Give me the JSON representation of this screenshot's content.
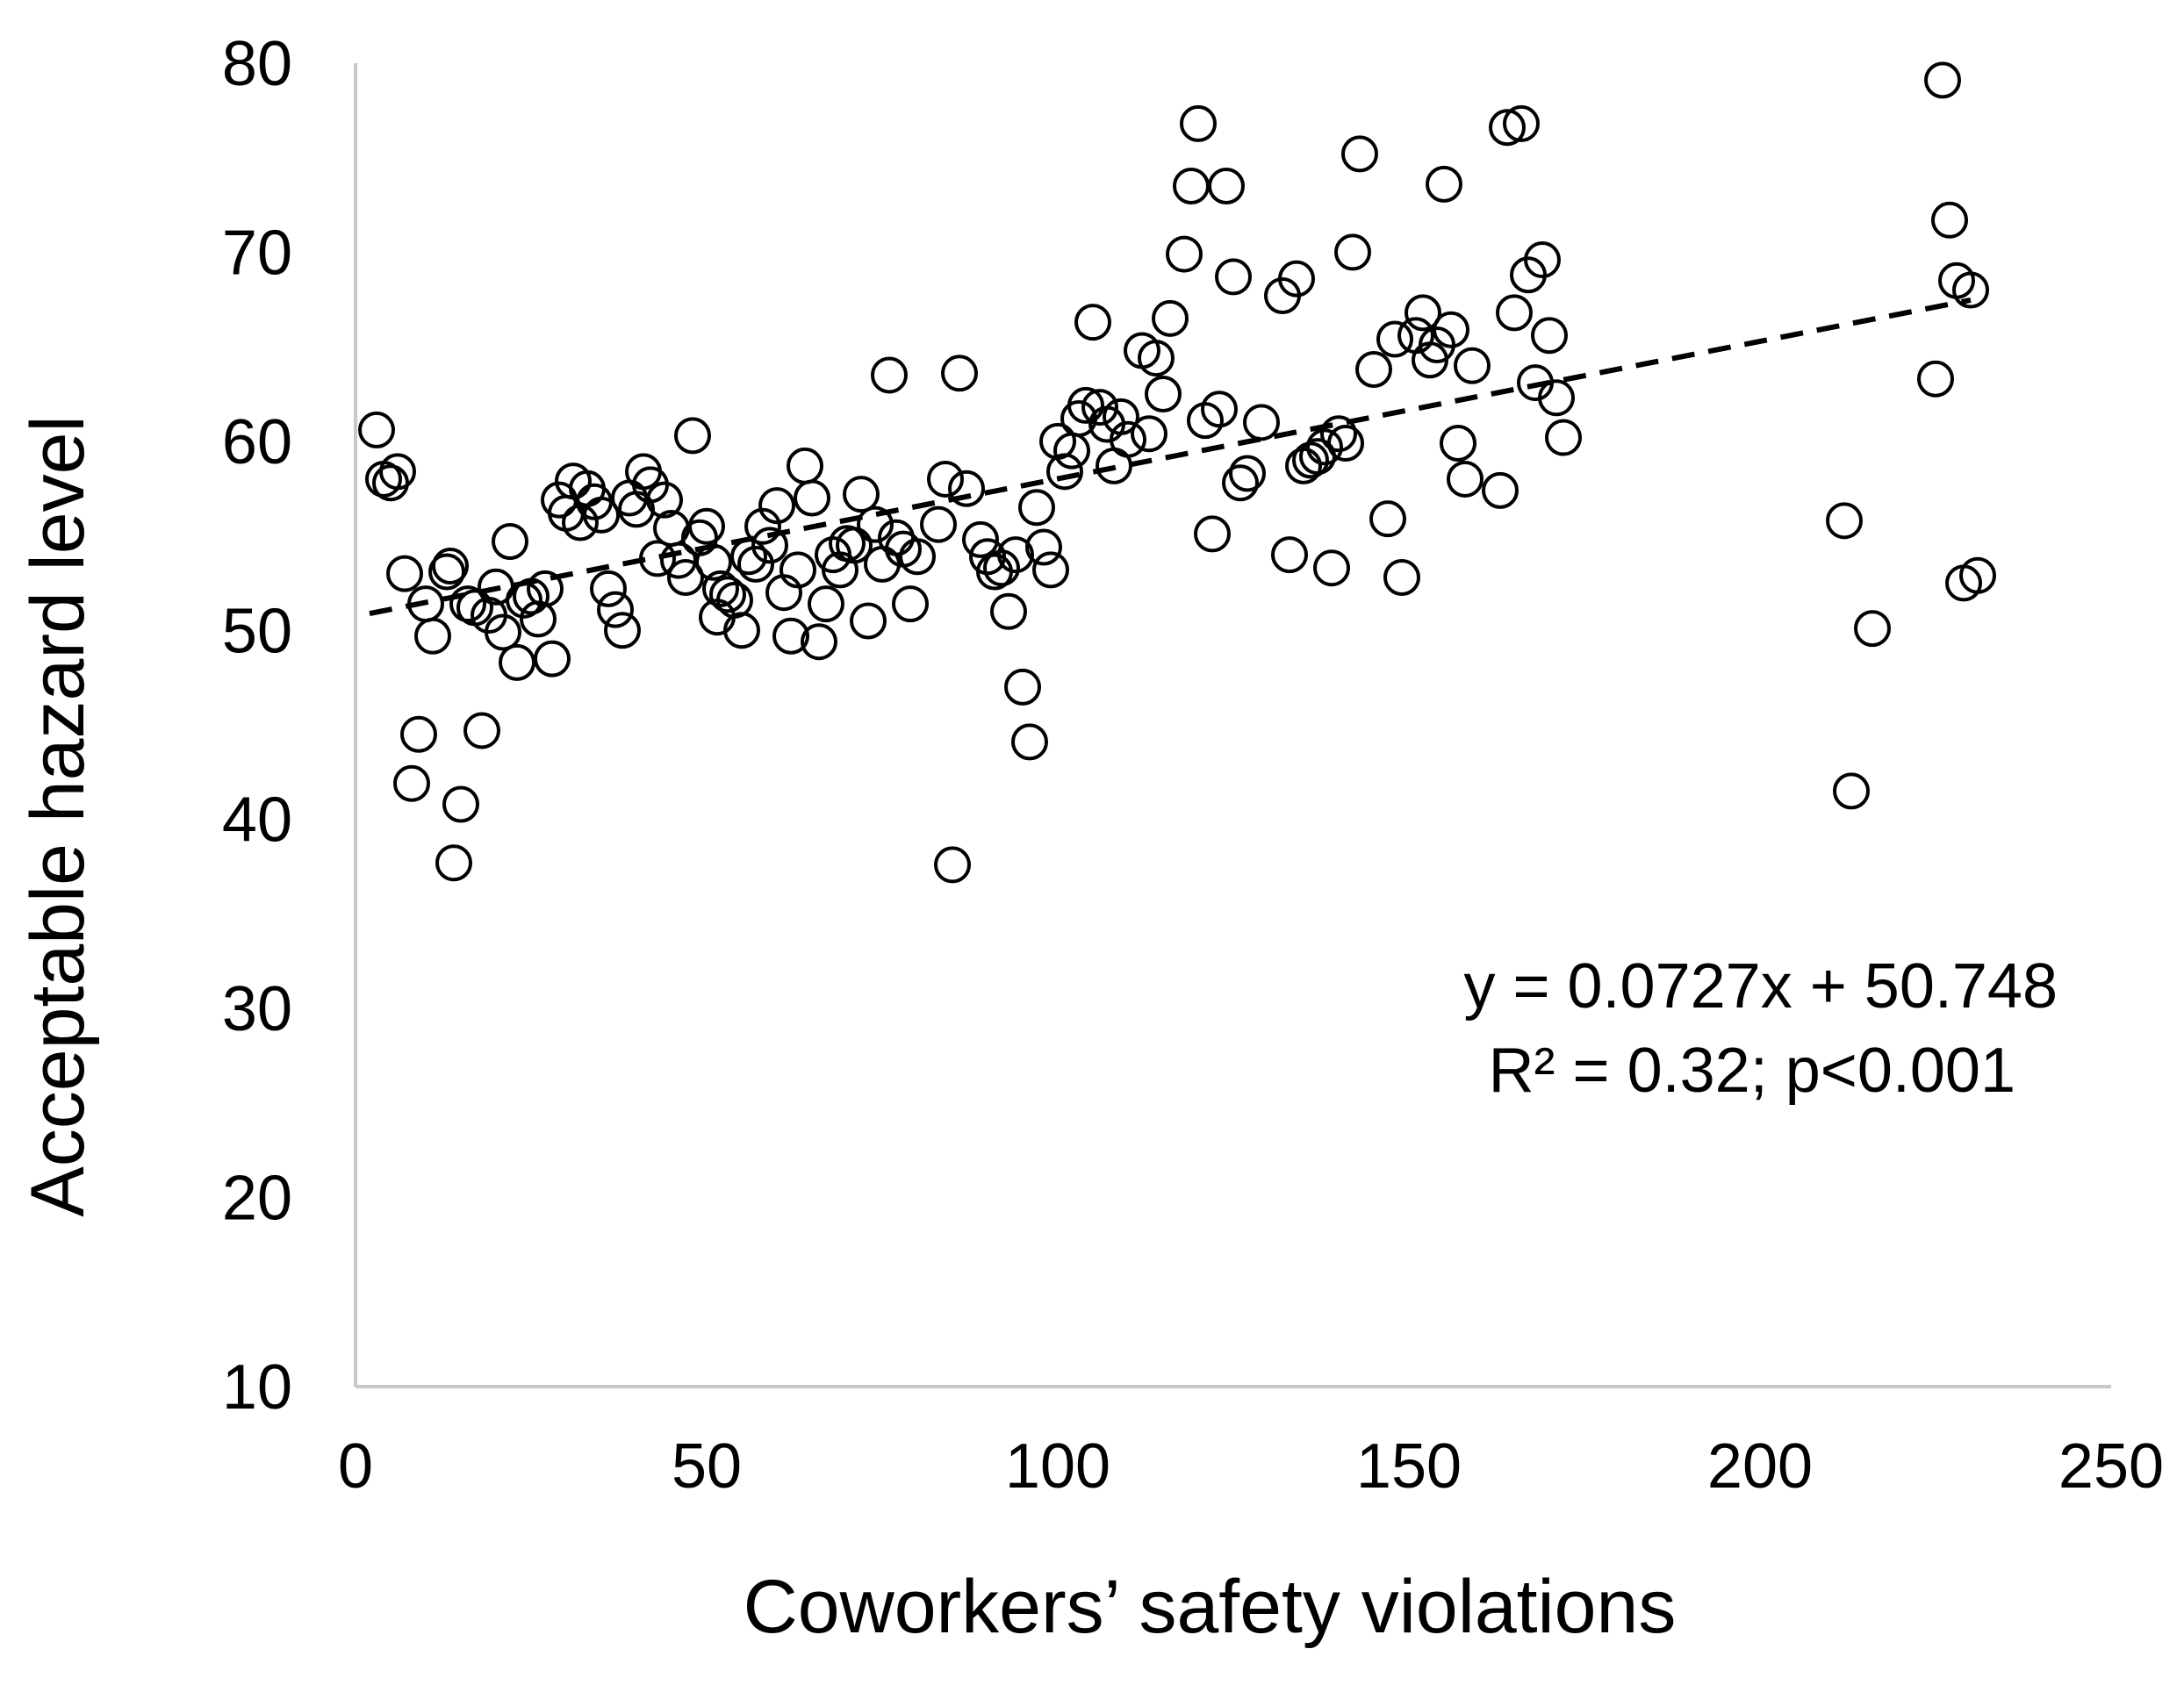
{
  "chart_data": {
    "type": "scatter",
    "title": "",
    "xlabel": "Coworkers’ safety violations",
    "ylabel": "Acceptable hazard level",
    "xlim": [
      0,
      250
    ],
    "ylim": [
      10,
      80
    ],
    "xticks": [
      0,
      50,
      100,
      150,
      200,
      250
    ],
    "yticks": [
      10,
      20,
      30,
      40,
      50,
      60,
      70,
      80
    ],
    "xtick_labels": [
      "0",
      "50",
      "100",
      "150",
      "200",
      "250"
    ],
    "ytick_labels": [
      "10",
      "20",
      "30",
      "40",
      "50",
      "60",
      "70",
      "80"
    ],
    "grid": false,
    "marker": "open-circle",
    "colors": {
      "axis": "#c8c8c8",
      "marker_stroke": "#000000",
      "marker_fill": "#ffffff",
      "trendline": "#000000"
    },
    "trendline": {
      "style": "dashed",
      "slope": 0.0727,
      "intercept": 50.748,
      "x_range": [
        2,
        230
      ]
    },
    "annotation": {
      "line1": "y = 0.0727x + 50.748",
      "line2": "R² = 0.32; p<0.001"
    },
    "series": [
      {
        "name": "observations",
        "points": [
          [
            3,
            60.6
          ],
          [
            4,
            58.0
          ],
          [
            5,
            57.8
          ],
          [
            6,
            58.4
          ],
          [
            7,
            53.0
          ],
          [
            8,
            41.9
          ],
          [
            9,
            44.5
          ],
          [
            10,
            51.4
          ],
          [
            11,
            49.7
          ],
          [
            13,
            53.1
          ],
          [
            13.5,
            53.4
          ],
          [
            14,
            37.7
          ],
          [
            15,
            40.8
          ],
          [
            16,
            51.4
          ],
          [
            17,
            51.2
          ],
          [
            18,
            44.7
          ],
          [
            19,
            50.8
          ],
          [
            20,
            52.3
          ],
          [
            21,
            49.9
          ],
          [
            22,
            54.7
          ],
          [
            23,
            48.3
          ],
          [
            24,
            51.6
          ],
          [
            25,
            51.8
          ],
          [
            26,
            50.6
          ],
          [
            27,
            52.2
          ],
          [
            28,
            48.5
          ],
          [
            29,
            56.9
          ],
          [
            30,
            56.2
          ],
          [
            31,
            57.9
          ],
          [
            32,
            55.7
          ],
          [
            33,
            57.5
          ],
          [
            34,
            56.8
          ],
          [
            35,
            56.1
          ],
          [
            36,
            52.2
          ],
          [
            37,
            51.1
          ],
          [
            38,
            50.0
          ],
          [
            39,
            57.0
          ],
          [
            40,
            56.4
          ],
          [
            41,
            58.4
          ],
          [
            42,
            57.7
          ],
          [
            43,
            53.8
          ],
          [
            44,
            56.9
          ],
          [
            45,
            55.4
          ],
          [
            46,
            53.7
          ],
          [
            47,
            52.8
          ],
          [
            48,
            60.3
          ],
          [
            49,
            54.9
          ],
          [
            50,
            55.5
          ],
          [
            51,
            53.6
          ],
          [
            51.5,
            50.7
          ],
          [
            52,
            52.2
          ],
          [
            53,
            51.9
          ],
          [
            54,
            51.6
          ],
          [
            55,
            50.0
          ],
          [
            56,
            53.9
          ],
          [
            57,
            53.5
          ],
          [
            58,
            55.5
          ],
          [
            59,
            54.5
          ],
          [
            60,
            56.6
          ],
          [
            61,
            52.0
          ],
          [
            62,
            49.7
          ],
          [
            63,
            53.2
          ],
          [
            64,
            58.7
          ],
          [
            65,
            57.0
          ],
          [
            66,
            49.4
          ],
          [
            67,
            51.4
          ],
          [
            68,
            54.0
          ],
          [
            69,
            53.2
          ],
          [
            70,
            54.6
          ],
          [
            71,
            54.5
          ],
          [
            72,
            57.2
          ],
          [
            73,
            50.5
          ],
          [
            74,
            55.6
          ],
          [
            75,
            53.5
          ],
          [
            76,
            63.5
          ],
          [
            77,
            54.9
          ],
          [
            78,
            54.3
          ],
          [
            79,
            51.4
          ],
          [
            80,
            53.9
          ],
          [
            83,
            55.6
          ],
          [
            84,
            58.0
          ],
          [
            85,
            37.6
          ],
          [
            86,
            63.6
          ],
          [
            87,
            57.5
          ],
          [
            89,
            54.8
          ],
          [
            90,
            53.9
          ],
          [
            91,
            53.1
          ],
          [
            92,
            53.3
          ],
          [
            93,
            51.0
          ],
          [
            94,
            54.0
          ],
          [
            95,
            47.0
          ],
          [
            96,
            44.1
          ],
          [
            97,
            56.5
          ],
          [
            98,
            54.4
          ],
          [
            99,
            53.2
          ],
          [
            100,
            60.0
          ],
          [
            101,
            58.4
          ],
          [
            102,
            59.5
          ],
          [
            103,
            61.2
          ],
          [
            104,
            61.9
          ],
          [
            105,
            66.3
          ],
          [
            106,
            61.8
          ],
          [
            107,
            60.9
          ],
          [
            108,
            58.7
          ],
          [
            109,
            61.3
          ],
          [
            110,
            60.1
          ],
          [
            112,
            64.8
          ],
          [
            113,
            60.4
          ],
          [
            114,
            64.4
          ],
          [
            115,
            62.5
          ],
          [
            116,
            66.5
          ],
          [
            118,
            69.9
          ],
          [
            119,
            73.5
          ],
          [
            120,
            76.8
          ],
          [
            121,
            61.1
          ],
          [
            122,
            55.1
          ],
          [
            123,
            61.7
          ],
          [
            124,
            73.5
          ],
          [
            125,
            68.7
          ],
          [
            126,
            57.8
          ],
          [
            127,
            58.3
          ],
          [
            129,
            61.0
          ],
          [
            132,
            67.7
          ],
          [
            133,
            54.0
          ],
          [
            134,
            68.6
          ],
          [
            135,
            58.7
          ],
          [
            136,
            59.0
          ],
          [
            137,
            59.2
          ],
          [
            138,
            59.7
          ],
          [
            139,
            53.3
          ],
          [
            140,
            60.4
          ],
          [
            141,
            59.9
          ],
          [
            142,
            70.0
          ],
          [
            143,
            75.2
          ],
          [
            145,
            63.8
          ],
          [
            147,
            55.9
          ],
          [
            148,
            65.4
          ],
          [
            149,
            52.8
          ],
          [
            151,
            65.6
          ],
          [
            152,
            66.8
          ],
          [
            153,
            64.3
          ],
          [
            154,
            65.1
          ],
          [
            155,
            73.6
          ],
          [
            156,
            65.9
          ],
          [
            157,
            59.9
          ],
          [
            158,
            58.0
          ],
          [
            159,
            64.0
          ],
          [
            163,
            57.4
          ],
          [
            164,
            76.6
          ],
          [
            165,
            66.8
          ],
          [
            166,
            76.8
          ],
          [
            167,
            68.8
          ],
          [
            168,
            63.1
          ],
          [
            169,
            69.6
          ],
          [
            170,
            65.6
          ],
          [
            171,
            62.3
          ],
          [
            172,
            60.2
          ],
          [
            212,
            55.8
          ],
          [
            213,
            41.5
          ],
          [
            216,
            50.1
          ],
          [
            225,
            63.3
          ],
          [
            226,
            79.1
          ],
          [
            227,
            71.7
          ],
          [
            228,
            68.5
          ],
          [
            229,
            52.5
          ],
          [
            230,
            68.0
          ],
          [
            231,
            52.9
          ]
        ]
      }
    ]
  }
}
